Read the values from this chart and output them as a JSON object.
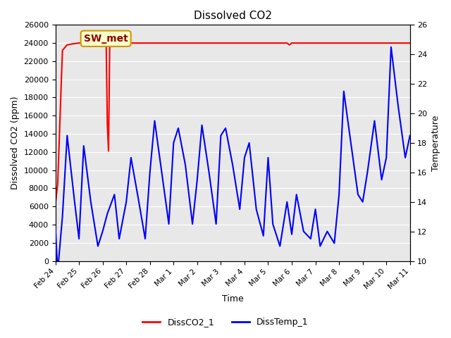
{
  "title": "Dissolved CO2",
  "xlabel": "Time",
  "ylabel_left": "Dissolved CO2 (ppm)",
  "ylabel_right": "Temperature",
  "ylim_left": [
    0,
    26000
  ],
  "ylim_right": [
    10,
    26
  ],
  "yticks_left": [
    0,
    2000,
    4000,
    6000,
    8000,
    10000,
    12000,
    14000,
    16000,
    18000,
    20000,
    22000,
    24000,
    26000
  ],
  "yticks_right": [
    10,
    12,
    14,
    16,
    18,
    20,
    22,
    24,
    26
  ],
  "background_color": "#e8e8e8",
  "annotation_text": "SW_met",
  "annotation_color": "#8b0000",
  "annotation_bg": "#ffffcc",
  "annotation_border": "#cc9900",
  "legend_entries": [
    "DissCO2_1",
    "DissTemp_1"
  ],
  "legend_colors": [
    "#ff0000",
    "#0000ff"
  ],
  "co2_color": "#ff0000",
  "temp_color": "#0000ff",
  "co2_data_x": [
    0,
    0.1,
    0.3,
    0.5,
    0.7,
    1.0,
    1.2,
    1.5,
    2.0,
    2.1,
    2.15,
    2.2,
    2.25,
    2.3,
    2.35,
    2.4,
    2.45,
    2.5,
    2.55,
    2.6,
    2.7,
    3.0,
    4.0,
    5.0,
    6.0,
    7.0,
    8.0,
    9.0,
    9.5,
    9.8,
    9.9,
    10.0,
    10.1,
    14.0,
    15.0
  ],
  "co2_data_y": [
    6200,
    8500,
    23200,
    23800,
    23900,
    24000,
    24000,
    24000,
    24000,
    24000,
    23900,
    15000,
    12100,
    23900,
    24000,
    24000,
    24000,
    24000,
    24000,
    24000,
    24000,
    24000,
    24000,
    24000,
    24000,
    24000,
    24000,
    24000,
    24000,
    24000,
    23800,
    24000,
    24000,
    24000,
    24000
  ],
  "temp_data_x": [
    0,
    0.1,
    0.3,
    0.5,
    0.8,
    1.0,
    1.2,
    1.5,
    1.8,
    2.0,
    2.2,
    2.5,
    2.7,
    3.0,
    3.2,
    3.5,
    3.8,
    4.0,
    4.2,
    4.5,
    4.8,
    5.0,
    5.2,
    5.5,
    5.8,
    6.0,
    6.2,
    6.5,
    6.8,
    7.0,
    7.2,
    7.5,
    7.8,
    8.0,
    8.2,
    8.5,
    8.8,
    9.0,
    9.2,
    9.5,
    9.8,
    10.0,
    10.2,
    10.5,
    10.8,
    11.0,
    11.2,
    11.5,
    11.8,
    12.0,
    12.2,
    12.5,
    12.8,
    13.0,
    13.2,
    13.5,
    13.8,
    14.0,
    14.2,
    14.5,
    14.8,
    15.0
  ],
  "temp_data_y": [
    12.3,
    9.3,
    13.0,
    18.5,
    14.2,
    11.5,
    17.8,
    14.0,
    11.0,
    12.0,
    13.2,
    14.5,
    11.5,
    14.0,
    17.0,
    14.3,
    11.5,
    16.0,
    19.5,
    16.0,
    12.5,
    18.0,
    19.0,
    16.5,
    12.5,
    15.5,
    19.2,
    16.0,
    12.5,
    18.5,
    19.0,
    16.5,
    13.5,
    17.0,
    18.0,
    13.5,
    11.7,
    17.0,
    12.5,
    11.0,
    14.0,
    11.8,
    14.5,
    12.0,
    11.5,
    13.5,
    11.0,
    12.0,
    11.2,
    14.5,
    21.5,
    18.0,
    14.5,
    14.0,
    16.0,
    19.5,
    15.5,
    17.0,
    24.5,
    20.5,
    17.0,
    18.5
  ],
  "xlim": [
    0,
    15
  ],
  "xtick_positions": [
    0,
    1,
    2,
    3,
    4,
    5,
    6,
    7,
    8,
    9,
    10,
    11,
    12,
    13,
    14,
    15
  ],
  "xtick_labels": [
    "Feb 24",
    "Feb 25",
    "Feb 26",
    "Feb 27",
    "Feb 28",
    "Mar 1",
    "Mar 2",
    "Mar 3",
    "Mar 4",
    "Mar 5",
    "Mar 6",
    "Mar 7",
    "Mar 8",
    "Mar 9",
    "Mar 10",
    "Mar 11"
  ]
}
